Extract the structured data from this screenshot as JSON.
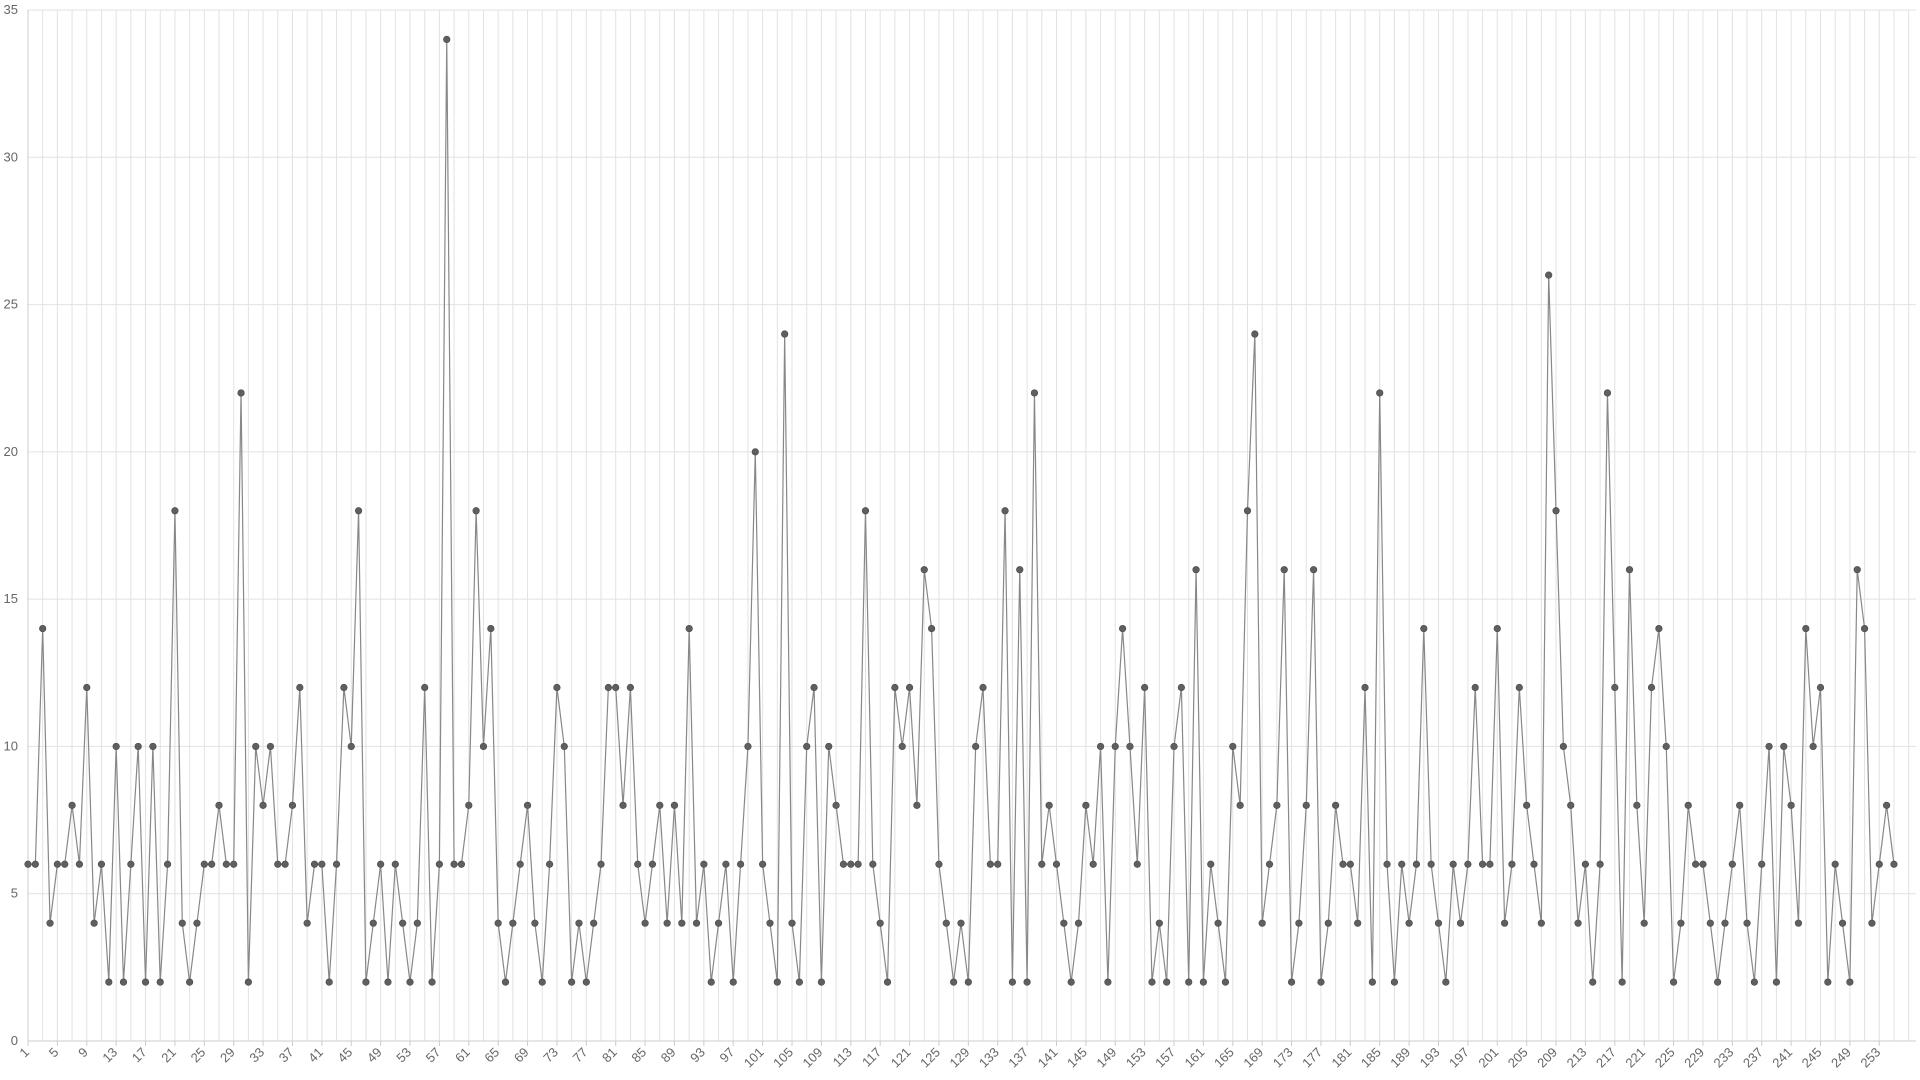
{
  "chart_data": {
    "type": "line",
    "title": "",
    "xlabel": "",
    "ylabel": "",
    "x_tick_labels": [
      "1",
      "5",
      "9",
      "13",
      "17",
      "21",
      "25",
      "29",
      "33",
      "37",
      "41",
      "45",
      "49",
      "53",
      "57",
      "61",
      "65",
      "69",
      "73",
      "77",
      "81",
      "85",
      "89",
      "93",
      "97",
      "101",
      "105",
      "109",
      "113",
      "117",
      "121",
      "125",
      "129",
      "133",
      "137",
      "141",
      "145",
      "149",
      "153",
      "157",
      "161",
      "165",
      "169",
      "173",
      "177",
      "181",
      "185",
      "189",
      "193",
      "197",
      "201",
      "205",
      "209",
      "213",
      "217",
      "221",
      "225",
      "229",
      "233",
      "237",
      "241",
      "245",
      "249",
      "253"
    ],
    "y_tick_labels": [
      "0",
      "5",
      "10",
      "15",
      "20",
      "25",
      "30",
      "35"
    ],
    "xlim": [
      1,
      258
    ],
    "ylim": [
      0,
      35
    ],
    "grid": true,
    "legend": "none",
    "colors": {
      "line": "#888888",
      "point": "#5f5f5f",
      "grid": "#e2e2e2",
      "axis": "#cccccc",
      "text": "#666666"
    },
    "series": [
      {
        "values": [
          6,
          6,
          14,
          4,
          6,
          6,
          8,
          6,
          12,
          4,
          6,
          2,
          10,
          2,
          6,
          10,
          2,
          10,
          2,
          6,
          18,
          4,
          2,
          4,
          6,
          6,
          8,
          6,
          6,
          22,
          2,
          10,
          8,
          10,
          6,
          6,
          8,
          12,
          4,
          6,
          6,
          2,
          6,
          12,
          10,
          18,
          2,
          4,
          6,
          2,
          6,
          4,
          2,
          4,
          12,
          2,
          6,
          34,
          6,
          6,
          8,
          18,
          10,
          14,
          4,
          2,
          4,
          6,
          8,
          4,
          2,
          6,
          12,
          10,
          2,
          4,
          2,
          4,
          6,
          12,
          12,
          8,
          12,
          6,
          4,
          6,
          8,
          4,
          8,
          4,
          14,
          4,
          6,
          2,
          4,
          6,
          2,
          6,
          10,
          20,
          6,
          4,
          2,
          24,
          4,
          2,
          10,
          12,
          2,
          10,
          8,
          6,
          6,
          6,
          18,
          6,
          4,
          2,
          12,
          10,
          12,
          8,
          16,
          14,
          6,
          4,
          2,
          4,
          2,
          10,
          12,
          6,
          6,
          18,
          2,
          16,
          2,
          22,
          6,
          8,
          6,
          4,
          2,
          4,
          8,
          6,
          10,
          2,
          10,
          14,
          10,
          6,
          12,
          2,
          4,
          2,
          10,
          12,
          2,
          16,
          2,
          6,
          4,
          2,
          10,
          8,
          18,
          24,
          4,
          6,
          8,
          16,
          2,
          4,
          8,
          16,
          2,
          4,
          8,
          6,
          6,
          4,
          12,
          2,
          22,
          6,
          2,
          6,
          4,
          6,
          14,
          6,
          4,
          2,
          6,
          4,
          6,
          12,
          6,
          6,
          14,
          4,
          6,
          12,
          8,
          6,
          4,
          26,
          18,
          10,
          8,
          4,
          6,
          2,
          6,
          22,
          12,
          2,
          16,
          8,
          4,
          12,
          14,
          10,
          2,
          4,
          8,
          6,
          6,
          4,
          2,
          4,
          6,
          8,
          4,
          2,
          6,
          10,
          2,
          10,
          8,
          4,
          14,
          10,
          12,
          2,
          6,
          4,
          2,
          16,
          14,
          4,
          6,
          8,
          6
        ]
      }
    ]
  }
}
